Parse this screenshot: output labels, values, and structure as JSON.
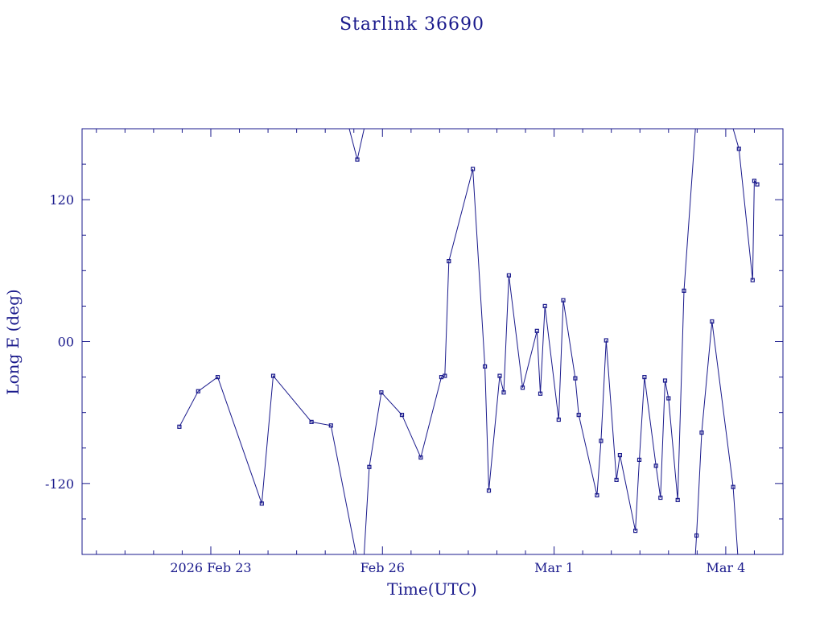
{
  "chart_data": {
    "type": "line",
    "title": "Starlink 36690",
    "xlabel": "Time(UTC)",
    "ylabel": "Long E (deg)",
    "ylim": [
      -180,
      180
    ],
    "xlim_days": [
      -2.25,
      10.0
    ],
    "x_tick_labels": [
      {
        "day": 0,
        "label": "2026 Feb 23"
      },
      {
        "day": 3,
        "label": "Feb 26"
      },
      {
        "day": 6,
        "label": "Mar  1"
      },
      {
        "day": 9,
        "label": "Mar  4"
      }
    ],
    "y_tick_labels": [
      {
        "value": 120,
        "label": "120"
      },
      {
        "value": 0,
        "label": "00"
      },
      {
        "value": -120,
        "label": "-120"
      }
    ],
    "grid": false,
    "series": [
      {
        "segments": [
          [
            [
              -0.55,
              -72
            ],
            [
              -0.22,
              -42
            ],
            [
              0.12,
              -30
            ],
            [
              0.89,
              -137
            ],
            [
              1.09,
              -29
            ],
            [
              1.76,
              -68
            ],
            [
              2.1,
              -71
            ],
            [
              2.54,
              -180
            ]
          ],
          [
            [
              2.42,
              180
            ],
            [
              2.56,
              154
            ],
            [
              2.68,
              180
            ]
          ],
          [
            [
              2.68,
              -180
            ],
            [
              2.77,
              -106
            ],
            [
              2.98,
              -43
            ],
            [
              3.34,
              -62
            ],
            [
              3.67,
              -98
            ],
            [
              4.03,
              -30
            ],
            [
              4.09,
              -29
            ],
            [
              4.16,
              68
            ],
            [
              4.58,
              146
            ],
            [
              4.79,
              -21
            ],
            [
              4.86,
              -126
            ],
            [
              5.05,
              -29
            ],
            [
              5.12,
              -43
            ],
            [
              5.21,
              56
            ],
            [
              5.45,
              -39
            ],
            [
              5.7,
              9
            ],
            [
              5.76,
              -44
            ],
            [
              5.84,
              30
            ],
            [
              6.08,
              -66
            ],
            [
              6.16,
              35
            ],
            [
              6.37,
              -31
            ],
            [
              6.43,
              -62
            ],
            [
              6.75,
              -130
            ],
            [
              6.82,
              -84
            ],
            [
              6.91,
              1
            ],
            [
              7.09,
              -117
            ],
            [
              7.15,
              -96
            ],
            [
              7.42,
              -160
            ],
            [
              7.49,
              -100
            ],
            [
              7.58,
              -30
            ],
            [
              7.78,
              -105
            ],
            [
              7.86,
              -132
            ],
            [
              7.94,
              -33
            ],
            [
              8.0,
              -48
            ],
            [
              8.16,
              -134
            ],
            [
              8.27,
              43
            ],
            [
              8.47,
              180
            ]
          ],
          [
            [
              8.47,
              -180
            ],
            [
              8.49,
              -164
            ],
            [
              8.58,
              -77
            ],
            [
              8.76,
              17
            ],
            [
              9.13,
              -123
            ],
            [
              9.21,
              -180
            ]
          ],
          [
            [
              9.13,
              180
            ],
            [
              9.23,
              163
            ],
            [
              9.47,
              52
            ],
            [
              9.5,
              136
            ],
            [
              9.55,
              133
            ]
          ]
        ]
      }
    ]
  }
}
